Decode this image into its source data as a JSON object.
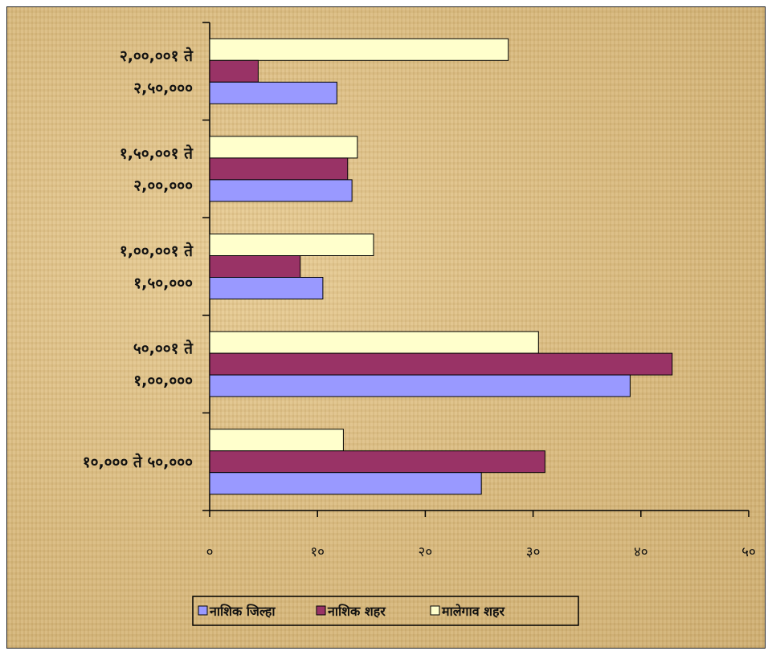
{
  "chart_data": {
    "type": "bar",
    "orientation": "horizontal",
    "categories": [
      [
        "१०,००० ते ५०,०००"
      ],
      [
        "५०,००१ ते",
        "१,००,०००"
      ],
      [
        "१,००,००१ ते",
        "१,५०,०००"
      ],
      [
        "१,५०,००१ ते",
        "२,००,०००"
      ],
      [
        "२,००,००१ ते",
        "२,५०,०००"
      ]
    ],
    "series": [
      {
        "name": "नाशिक जिल्हा",
        "color": "#9999ff",
        "values": [
          25.2,
          39.0,
          10.5,
          13.2,
          11.8
        ]
      },
      {
        "name": "नाशिक शहर",
        "color": "#993366",
        "values": [
          31.1,
          42.9,
          8.4,
          12.8,
          4.5
        ]
      },
      {
        "name": "मालेगाव शहर",
        "color": "#ffffcc",
        "values": [
          12.4,
          30.5,
          15.2,
          13.7,
          27.7
        ]
      }
    ],
    "xlim": [
      0,
      50
    ],
    "xticks": [
      "०",
      "१०",
      "२०",
      "३०",
      "४०",
      "५०"
    ],
    "legend_position": "bottom",
    "grid": false,
    "title": "",
    "xlabel": "",
    "ylabel": ""
  }
}
